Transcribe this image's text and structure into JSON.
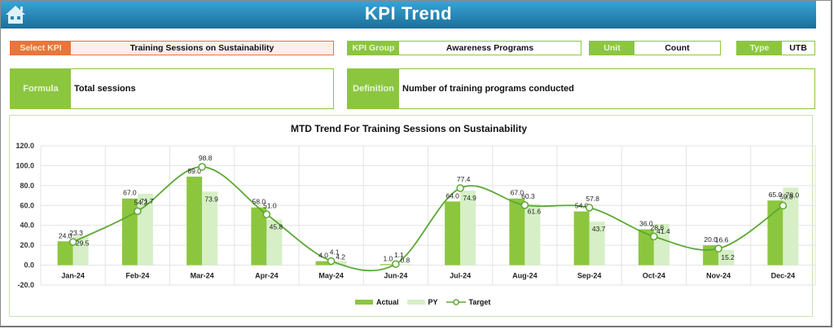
{
  "header": {
    "title": "KPI Trend",
    "home_icon": "home-icon"
  },
  "selectors": {
    "select_kpi": {
      "label": "Select KPI",
      "value": "Training Sessions on Sustainability"
    },
    "kpi_group": {
      "label": "KPI Group",
      "value": "Awareness Programs"
    },
    "unit": {
      "label": "Unit",
      "value": "Count"
    },
    "type": {
      "label": "Type",
      "value": "UTB"
    }
  },
  "formula": {
    "label": "Formula",
    "value": "Total sessions"
  },
  "definition": {
    "label": "Definition",
    "value": "Number of training programs conducted"
  },
  "colors": {
    "header_start": "#3aa3d6",
    "header_end": "#1c6f99",
    "accent_green": "#8cc63f",
    "accent_orange": "#e6763a",
    "actual": "#8cc63f",
    "py": "#d6efc6",
    "target": "#5aa832"
  },
  "legend": {
    "actual": "Actual",
    "py": "PY",
    "target": "Target"
  },
  "chart_data": {
    "type": "bar",
    "title": "MTD Trend For Training Sessions on Sustainability",
    "xlabel": "",
    "ylabel": "",
    "ylim": [
      -20,
      120
    ],
    "yticks": [
      "120.0",
      "100.0",
      "80.0",
      "60.0",
      "40.0",
      "20.0",
      "0.0",
      "-20.0"
    ],
    "grid": true,
    "legend_position": "bottom",
    "categories": [
      "Jan-24",
      "Feb-24",
      "Mar-24",
      "Apr-24",
      "May-24",
      "Jun-24",
      "Jul-24",
      "Aug-24",
      "Sep-24",
      "Oct-24",
      "Nov-24",
      "Dec-24"
    ],
    "series": [
      {
        "name": "Actual",
        "type": "bar",
        "values": [
          24.0,
          67.0,
          89.0,
          58.0,
          4.0,
          1.0,
          64.0,
          67.0,
          54.0,
          36.0,
          20.0,
          65.0
        ]
      },
      {
        "name": "PY",
        "type": "bar",
        "values": [
          29.5,
          71.7,
          73.9,
          45.8,
          4.2,
          0.8,
          74.9,
          61.6,
          43.7,
          41.4,
          15.2,
          78.0
        ]
      },
      {
        "name": "Target",
        "type": "line",
        "values": [
          23.3,
          54.2,
          98.8,
          51.0,
          4.1,
          1.1,
          77.4,
          60.3,
          57.8,
          28.8,
          16.6,
          59.8
        ]
      }
    ]
  }
}
